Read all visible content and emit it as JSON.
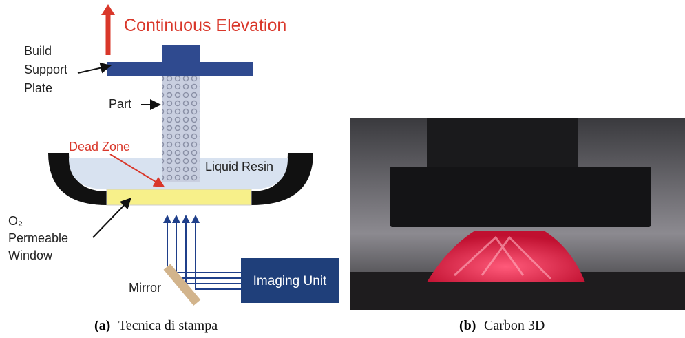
{
  "diagram": {
    "arrow_label": "Continuous Elevation",
    "build_plate_label": [
      "Build",
      "Support",
      "Plate"
    ],
    "part_label": "Part",
    "dead_zone_label": "Dead Zone",
    "resin_label": "Liquid Resin",
    "window_label": [
      "O₂",
      "Permeable",
      "Window"
    ],
    "mirror_label": "Mirror",
    "imaging_label": "Imaging Unit"
  },
  "captions": [
    {
      "tag": "(a)",
      "text": "Tecnica di stampa"
    },
    {
      "tag": "(b)",
      "text": "Carbon 3D"
    }
  ]
}
